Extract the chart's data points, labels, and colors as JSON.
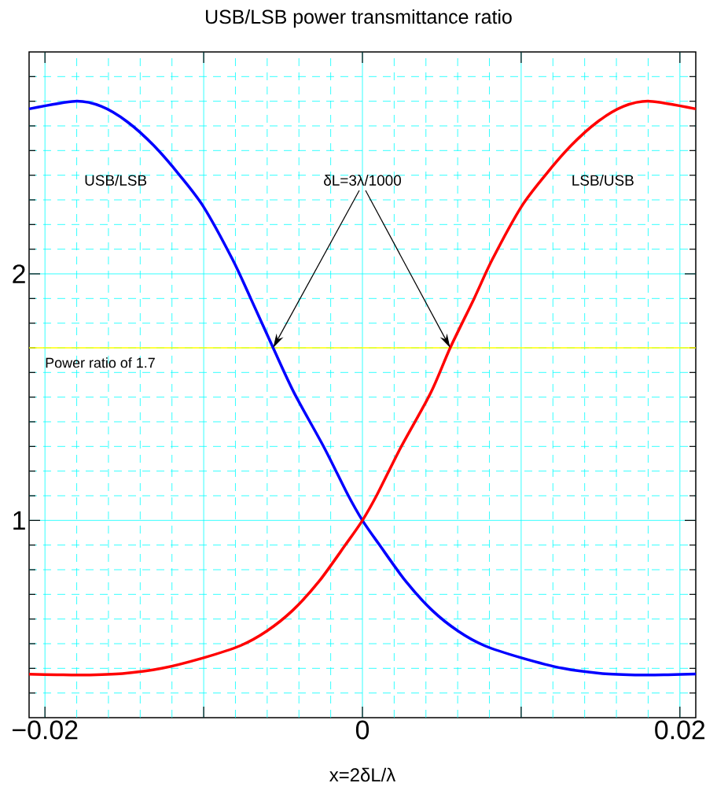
{
  "chart_data": {
    "type": "line",
    "title": "USB/LSB power transmittance ratio",
    "xlabel": "x=2δL/λ",
    "x": [
      -0.021,
      -0.0181,
      -0.01645,
      -0.0148,
      -0.01314,
      -0.01149,
      -0.01,
      -0.00818,
      -0.00703,
      -0.00562,
      -0.0043,
      -0.0024,
      -0.00091,
      0,
      0.00107,
      0.00273,
      0.00438,
      0.00603,
      0.00769,
      0.01,
      0.01264,
      0.01512,
      0.0176,
      0.01925,
      0.021
    ],
    "series": [
      {
        "name": "USB/LSB",
        "color": "#0000ff",
        "values": [
          2.669,
          2.7,
          2.679,
          2.616,
          2.52,
          2.398,
          2.271,
          2.058,
          1.899,
          1.699,
          1.517,
          1.294,
          1.103,
          1.0,
          0.901,
          0.753,
          0.636,
          0.551,
          0.492,
          0.443,
          0.4,
          0.379,
          0.373,
          0.374,
          0.377
        ]
      },
      {
        "name": "LSB/USB",
        "color": "#ff0000",
        "x": [
          -0.021,
          -0.01925,
          -0.0176,
          -0.01512,
          -0.01264,
          -0.01,
          -0.00769,
          -0.00603,
          -0.00438,
          -0.00273,
          -0.00107,
          0,
          0.00091,
          0.0024,
          0.0043,
          0.00553,
          0.00703,
          0.00818,
          0.01,
          0.01149,
          0.01314,
          0.0148,
          0.01645,
          0.0181,
          0.021
        ],
        "values": [
          0.376,
          0.374,
          0.373,
          0.379,
          0.4,
          0.443,
          0.492,
          0.551,
          0.636,
          0.753,
          0.901,
          1.0,
          1.103,
          1.294,
          1.517,
          1.7,
          1.899,
          2.058,
          2.271,
          2.398,
          2.52,
          2.616,
          2.679,
          2.7,
          2.669
        ]
      }
    ],
    "xlim": [
      -0.021,
      0.021
    ],
    "ylim": [
      0.2,
      2.9
    ],
    "xticks": [
      {
        "value": -0.02,
        "label": "−0.02"
      },
      {
        "value": -0.018,
        "label": null
      },
      {
        "value": -0.016,
        "label": null
      },
      {
        "value": -0.014,
        "label": null
      },
      {
        "value": -0.012,
        "label": null
      },
      {
        "value": -0.01,
        "label": null
      },
      {
        "value": -0.008,
        "label": null
      },
      {
        "value": -0.006,
        "label": null
      },
      {
        "value": -0.004,
        "label": null
      },
      {
        "value": -0.002,
        "label": null
      },
      0,
      {
        "value": 0.002,
        "label": null
      },
      {
        "value": 0.004,
        "label": null
      },
      {
        "value": 0.006,
        "label": null
      },
      {
        "value": 0.008,
        "label": null
      },
      {
        "value": 0.01,
        "label": null
      },
      {
        "value": 0.012,
        "label": null
      },
      {
        "value": 0.014,
        "label": null
      },
      {
        "value": 0.016,
        "label": null
      },
      {
        "value": 0.018,
        "label": null
      },
      0.02
    ],
    "yticks": [
      {
        "value": 0.3,
        "label": null
      },
      {
        "value": 0.4,
        "label": null
      },
      {
        "value": 0.5,
        "label": null
      },
      {
        "value": 0.6,
        "label": null
      },
      {
        "value": 0.7,
        "label": null
      },
      {
        "value": 0.8,
        "label": null
      },
      {
        "value": 0.9,
        "label": null
      },
      1,
      {
        "value": 1.1,
        "label": null
      },
      {
        "value": 1.2,
        "label": null
      },
      {
        "value": 1.3,
        "label": null
      },
      {
        "value": 1.4,
        "label": null
      },
      {
        "value": 1.5,
        "label": null
      },
      {
        "value": 1.6,
        "label": null
      },
      {
        "value": 1.7,
        "label": null
      },
      {
        "value": 1.8,
        "label": null
      },
      {
        "value": 1.9,
        "label": null
      },
      2,
      {
        "value": 2.1,
        "label": null
      },
      {
        "value": 2.2,
        "label": null
      },
      {
        "value": 2.3,
        "label": null
      },
      {
        "value": 2.4,
        "label": null
      },
      {
        "value": 2.5,
        "label": null
      },
      {
        "value": 2.6,
        "label": null
      },
      {
        "value": 2.7,
        "label": null
      },
      {
        "value": 2.8,
        "label": null
      }
    ],
    "ref_lines": [
      {
        "axis": "y",
        "value": 1.7,
        "label": "Power ratio of 1.7",
        "color": "#ffff00"
      }
    ],
    "annotations": [
      "δL=3λ/1000"
    ],
    "grid": true,
    "marker": "none",
    "line_style": "solid"
  }
}
